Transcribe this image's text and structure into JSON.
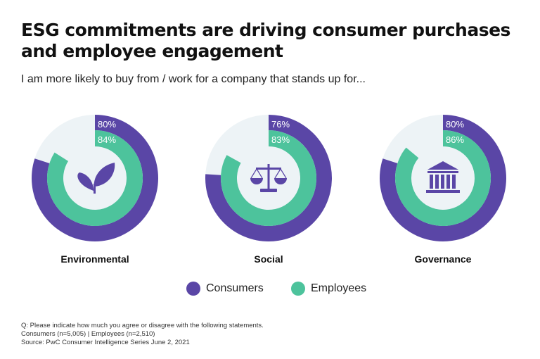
{
  "title": "ESG commitments are driving consumer purchases and employee engagement",
  "subtitle": "I am more likely to buy from / work for a company that stands up for...",
  "chart_data": {
    "type": "pie",
    "categories": [
      "Environmental",
      "Social",
      "Governance"
    ],
    "icons": [
      "leaves-icon",
      "scales-icon",
      "building-columns-icon"
    ],
    "series": [
      {
        "name": "Consumers",
        "values": [
          80,
          76,
          80
        ],
        "color": "#5a46a6"
      },
      {
        "name": "Employees",
        "values": [
          84,
          83,
          86
        ],
        "color": "#4dc39c"
      }
    ],
    "unit": "%"
  },
  "legend": {
    "consumers": "Consumers",
    "employees": "Employees"
  },
  "footnotes": [
    "Q: Please indicate how much you agree or disagree with the following statements.",
    "Consumers (n=5,005) | Employees (n=2,510)",
    "Source: PwC Consumer Intelligence Series June 2, 2021"
  ]
}
